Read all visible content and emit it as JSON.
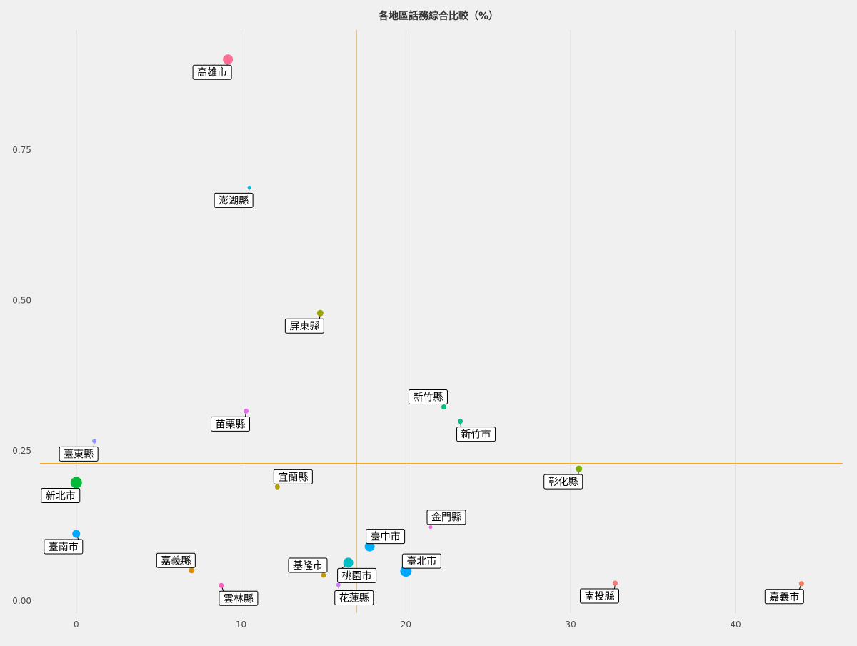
{
  "chart_data": {
    "type": "scatter",
    "title": "各地區話務綜合比較（%）",
    "xlabel": "",
    "ylabel": "",
    "xlim": [
      -2.2,
      46.5
    ],
    "ylim": [
      -0.02,
      0.95
    ],
    "x_ticks": [
      0,
      10,
      20,
      30,
      40
    ],
    "y_ticks": [
      0.0,
      0.25,
      0.5,
      0.75
    ],
    "x_tick_labels": [
      "0",
      "10",
      "20",
      "30",
      "40"
    ],
    "y_tick_labels": [
      "0.00",
      "0.25",
      "0.50",
      "0.75"
    ],
    "grid": "vertical-major",
    "ref_lines": {
      "x": 17.0,
      "y": 0.229
    },
    "points": [
      {
        "label": "高雄市",
        "x": 9.2,
        "y": 0.901,
        "color": "#ff6c91",
        "size": 7
      },
      {
        "label": "澎湖縣",
        "x": 10.5,
        "y": 0.688,
        "color": "#00bcd8",
        "size": 2.5
      },
      {
        "label": "屏東縣",
        "x": 14.8,
        "y": 0.479,
        "color": "#9aa400",
        "size": 4.5
      },
      {
        "label": "新竹縣",
        "x": 22.3,
        "y": 0.323,
        "color": "#00bf7d",
        "size": 3.5
      },
      {
        "label": "新竹市",
        "x": 23.3,
        "y": 0.299,
        "color": "#00c08b",
        "size": 3.5
      },
      {
        "label": "苗栗縣",
        "x": 10.3,
        "y": 0.316,
        "color": "#e76bf3",
        "size": 3.5
      },
      {
        "label": "臺東縣",
        "x": 1.1,
        "y": 0.266,
        "color": "#8b93ff",
        "size": 3
      },
      {
        "label": "彰化縣",
        "x": 30.5,
        "y": 0.22,
        "color": "#7cae00",
        "size": 4.5
      },
      {
        "label": "新北市",
        "x": 0.0,
        "y": 0.197,
        "color": "#00ba38",
        "size": 8
      },
      {
        "label": "宜蘭縣",
        "x": 12.2,
        "y": 0.19,
        "color": "#b79f00",
        "size": 3.5
      },
      {
        "label": "金門縣",
        "x": 21.5,
        "y": 0.123,
        "color": "#f564e3",
        "size": 2.5
      },
      {
        "label": "臺南市",
        "x": 0.0,
        "y": 0.112,
        "color": "#00a9ff",
        "size": 5.5
      },
      {
        "label": "臺中市",
        "x": 17.8,
        "y": 0.091,
        "color": "#00b0f6",
        "size": 7
      },
      {
        "label": "桃園市",
        "x": 16.5,
        "y": 0.064,
        "color": "#00bfc4",
        "size": 7
      },
      {
        "label": "嘉義縣",
        "x": 7.0,
        "y": 0.051,
        "color": "#de8c00",
        "size": 4
      },
      {
        "label": "基隆市",
        "x": 15.0,
        "y": 0.043,
        "color": "#c49a00",
        "size": 3.5
      },
      {
        "label": "臺北市",
        "x": 20.0,
        "y": 0.05,
        "color": "#00a5ff",
        "size": 8
      },
      {
        "label": "雲林縣",
        "x": 8.8,
        "y": 0.026,
        "color": "#ff62bc",
        "size": 3.5
      },
      {
        "label": "花蓮縣",
        "x": 15.9,
        "y": 0.027,
        "color": "#c77cff",
        "size": 3
      },
      {
        "label": "南投縣",
        "x": 32.7,
        "y": 0.03,
        "color": "#f8766d",
        "size": 3.5
      },
      {
        "label": "嘉義市",
        "x": 44.0,
        "y": 0.029,
        "color": "#f37b59",
        "size": 3.5
      }
    ]
  }
}
